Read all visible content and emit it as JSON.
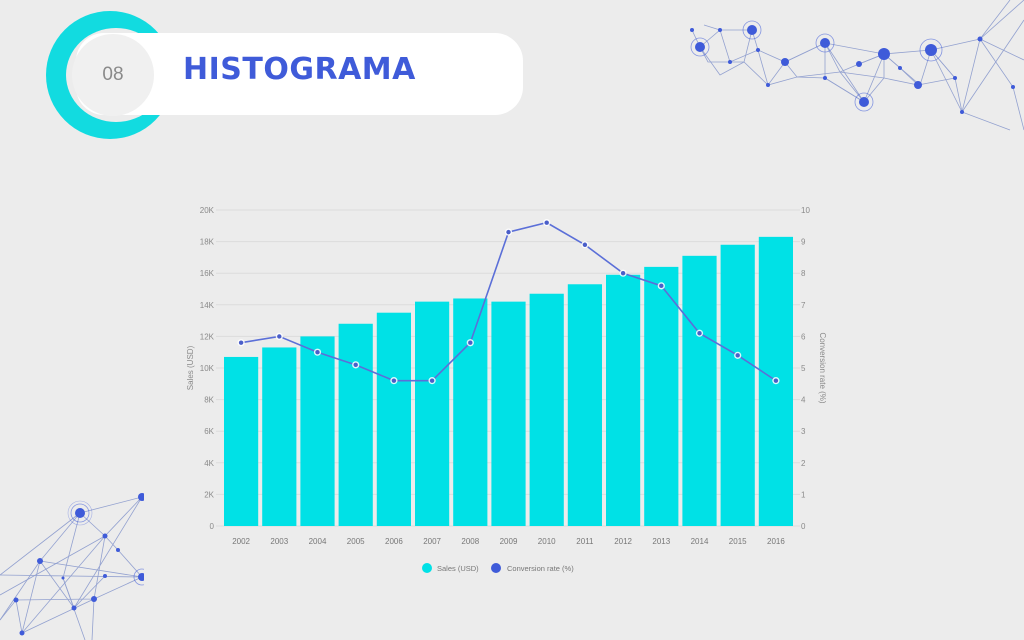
{
  "header": {
    "number": "08",
    "title": "HISTOGRAMA"
  },
  "colors": {
    "background": "#ececec",
    "accent_cyan": "#12dbe0",
    "title_blue": "#3f5bd9",
    "bar": "#00e1e6",
    "line": "#5b6fd8",
    "grid": "#dcdcdc",
    "tick_text": "#8a8a8a"
  },
  "legend": {
    "items": [
      {
        "label": "Sales (USD)",
        "color": "#00e1e6"
      },
      {
        "label": "Conversion rate (%)",
        "color": "#3f5bd9"
      }
    ]
  },
  "chart_data": {
    "type": "bar",
    "title": "",
    "categories": [
      "2002",
      "2003",
      "2004",
      "2005",
      "2006",
      "2007",
      "2008",
      "2009",
      "2010",
      "2011",
      "2012",
      "2013",
      "2014",
      "2015",
      "2016"
    ],
    "series": [
      {
        "name": "Sales (USD)",
        "type": "bar",
        "axis": "left",
        "values": [
          10700,
          11300,
          12000,
          12800,
          13500,
          14200,
          14400,
          14200,
          14700,
          15300,
          15900,
          16400,
          17100,
          17800,
          18300
        ]
      },
      {
        "name": "Conversion rate (%)",
        "type": "line",
        "axis": "right",
        "values": [
          5.8,
          6.0,
          5.5,
          5.1,
          4.6,
          4.6,
          5.8,
          9.3,
          9.6,
          8.9,
          8.0,
          7.6,
          6.1,
          5.4,
          4.6
        ]
      }
    ],
    "xlabel": "",
    "ylabel": "Sales (USD)",
    "y2label": "Conversion rate (%)",
    "ylim": [
      0,
      20000
    ],
    "y2lim": [
      0,
      10
    ],
    "y_ticks": [
      "0",
      "2K",
      "4K",
      "6K",
      "8K",
      "10K",
      "12K",
      "14K",
      "16K",
      "18K",
      "20K"
    ],
    "y2_ticks": [
      "0",
      "1",
      "2",
      "3",
      "4",
      "5",
      "6",
      "7",
      "8",
      "9",
      "10"
    ],
    "grid": true,
    "legend_position": "bottom"
  }
}
